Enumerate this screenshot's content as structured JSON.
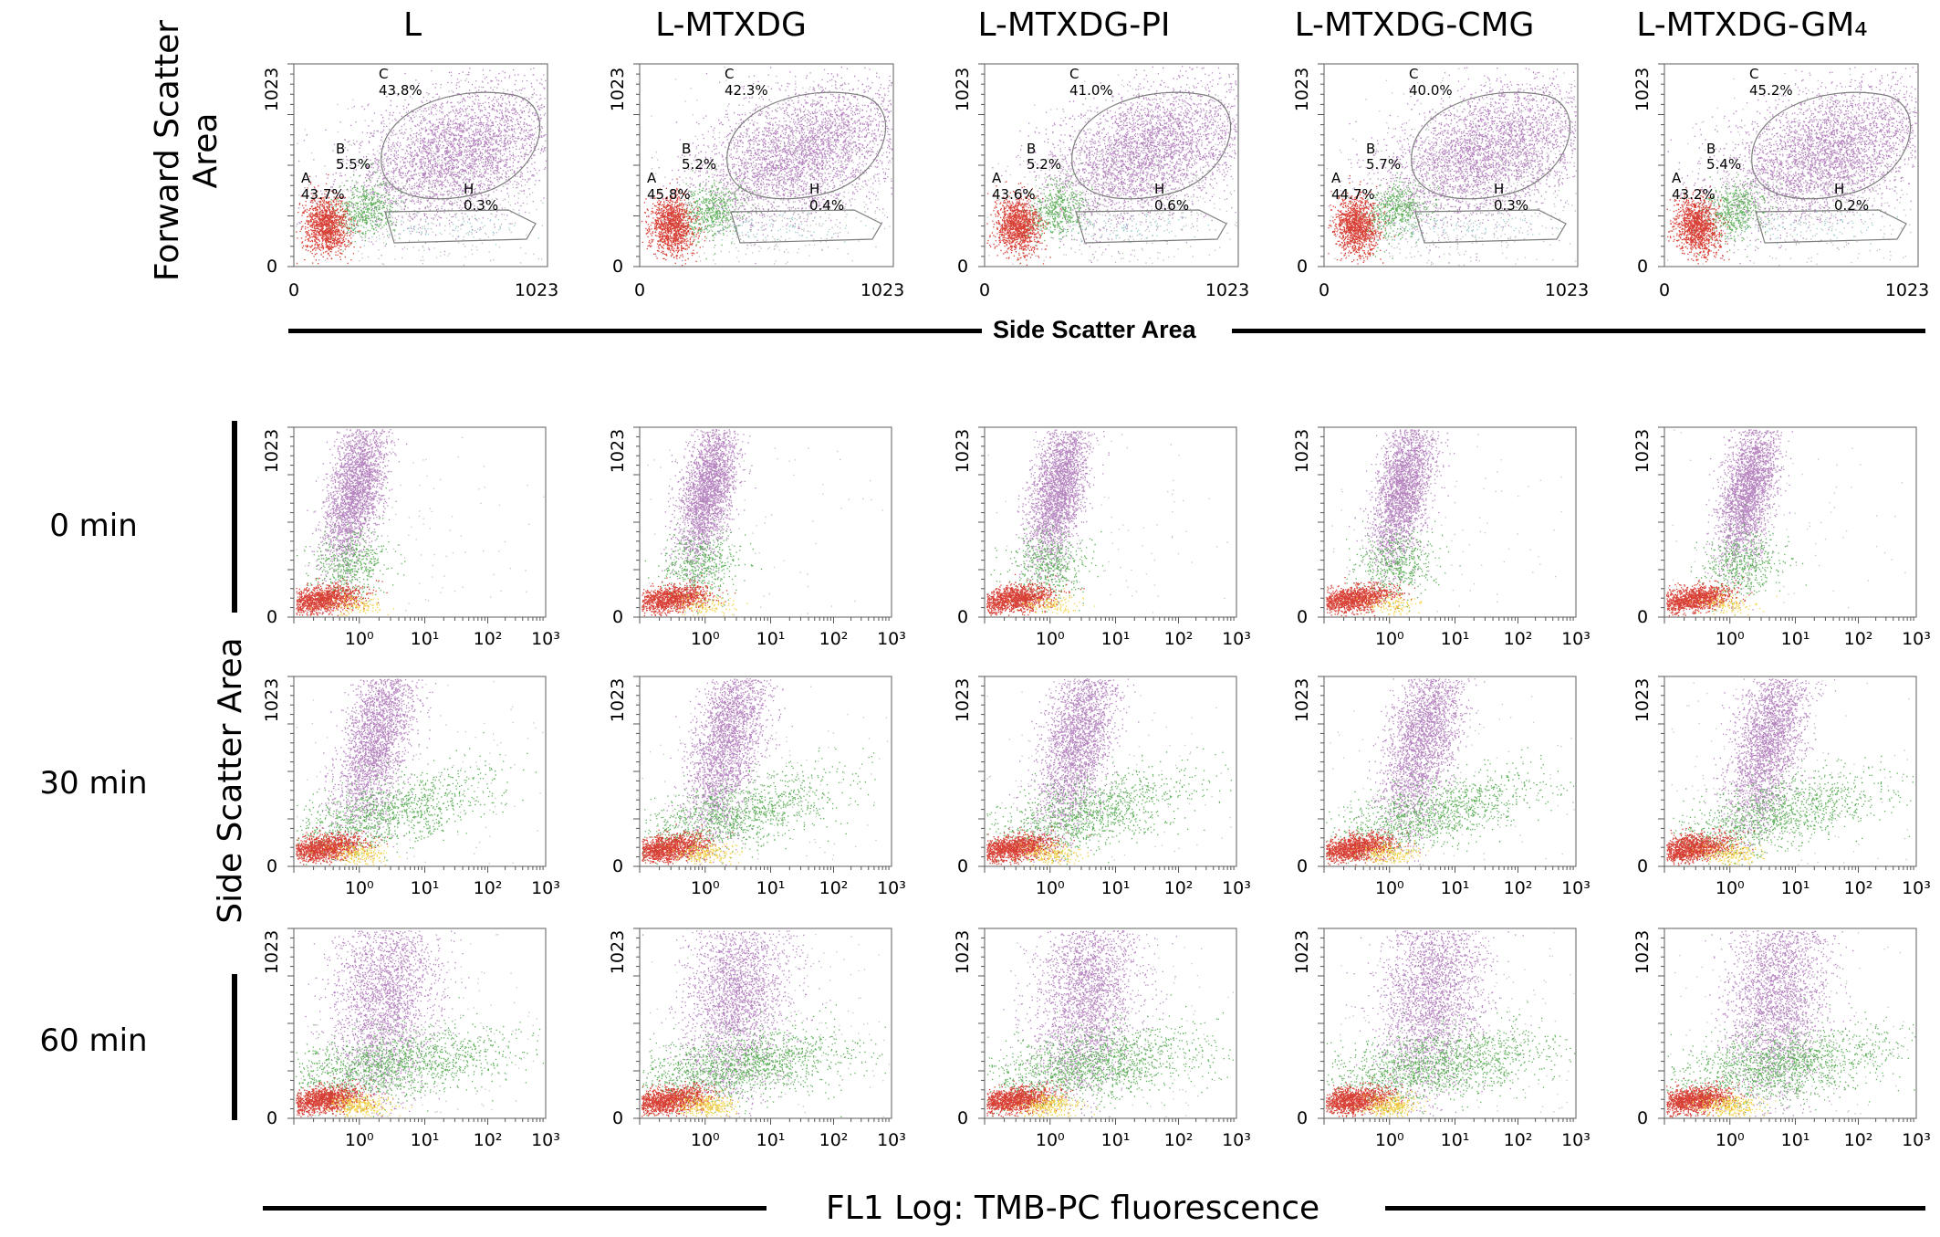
{
  "columns": [
    "L",
    "L-MTXDG",
    "L-MTXDG-PI",
    "L-MTXDG-CMG",
    "L-MTXDG-GM₄"
  ],
  "rows": [
    "0 min",
    "30 min",
    "60 min"
  ],
  "forward_scatter_title": "Forward Scatter\nArea",
  "side_scatter_title_top": "Side Scatter Area",
  "side_scatter_title_left": "Side Scatter Area",
  "fl1_title": "FL1 Log: TMB-PC fluorescence",
  "colors": {
    "gate_A": "#d42a1f",
    "gate_B": "#4fa84a",
    "gate_C": "#a467b0",
    "gate_H": "#7fc3c8",
    "ungated": "#8a8a8a",
    "fl1_high": "#f2cf3a",
    "gate_outline": "#7d7d7d"
  },
  "chart_data": [
    {
      "type": "scatter",
      "panel_group": "FSC vs SSC gates",
      "xlabel": "Side Scatter Area",
      "ylabel": "Forward Scatter Area",
      "xlim": [
        0,
        1023
      ],
      "ylim": [
        0,
        1023
      ],
      "x_ticks": [
        "0",
        "1023"
      ],
      "y_ticks": [
        "0",
        "1023"
      ],
      "series": [
        {
          "name": "L",
          "gates": {
            "A": "43.7%",
            "B": "5.5%",
            "C": "43.8%",
            "H": "0.3%"
          }
        },
        {
          "name": "L-MTXDG",
          "gates": {
            "A": "45.8%",
            "B": "5.2%",
            "C": "42.3%",
            "H": "0.4%"
          }
        },
        {
          "name": "L-MTXDG-PI",
          "gates": {
            "A": "43.6%",
            "B": "5.2%",
            "C": "41.0%",
            "H": "0.6%"
          }
        },
        {
          "name": "L-MTXDG-CMG",
          "gates": {
            "A": "44.7%",
            "B": "5.7%",
            "C": "40.0%",
            "H": "0.3%"
          }
        },
        {
          "name": "L-MTXDG-GM₄",
          "gates": {
            "A": "43.2%",
            "B": "5.4%",
            "C": "45.2%",
            "H": "0.2%"
          }
        }
      ]
    },
    {
      "type": "scatter",
      "panel_group": "SSC vs FL1 log, time course",
      "xlabel": "FL1 Log: TMB-PC fluorescence",
      "ylabel": "Side Scatter Area",
      "x_scale": "log",
      "xlim": [
        0.1,
        1000
      ],
      "ylim": [
        0,
        1023
      ],
      "x_ticks": [
        "10⁰",
        "10¹",
        "10²",
        "10³"
      ],
      "y_ticks": [
        "0",
        "1023"
      ],
      "rows": [
        "0 min",
        "30 min",
        "60 min"
      ],
      "columns": [
        "L",
        "L-MTXDG",
        "L-MTXDG-PI",
        "L-MTXDG-CMG",
        "L-MTXDG-GM₄"
      ]
    }
  ]
}
